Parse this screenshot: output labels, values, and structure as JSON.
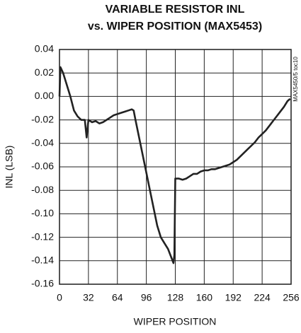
{
  "chart_data": {
    "type": "line",
    "title": [
      "VARIABLE RESISTOR INL",
      "vs. WIPER POSITION (MAX5453)"
    ],
    "xlabel": "WIPER POSITION",
    "ylabel": "INL (LSB)",
    "annotation": "MAX5450/5 toc10",
    "x": [
      0,
      1,
      4,
      8,
      12,
      16,
      20,
      24,
      28,
      30,
      32,
      36,
      40,
      44,
      48,
      52,
      56,
      60,
      64,
      68,
      72,
      76,
      80,
      82,
      84,
      88,
      92,
      96,
      100,
      104,
      108,
      112,
      116,
      120,
      124,
      126,
      127,
      128,
      132,
      136,
      140,
      144,
      148,
      152,
      156,
      160,
      164,
      168,
      172,
      176,
      180,
      184,
      188,
      192,
      196,
      200,
      204,
      208,
      212,
      216,
      220,
      224,
      228,
      232,
      236,
      240,
      244,
      248,
      252,
      255
    ],
    "values": [
      0.0,
      0.025,
      0.02,
      0.01,
      0.0,
      -0.012,
      -0.017,
      -0.02,
      -0.02,
      -0.035,
      -0.02,
      -0.022,
      -0.021,
      -0.023,
      -0.022,
      -0.02,
      -0.018,
      -0.016,
      -0.015,
      -0.014,
      -0.013,
      -0.012,
      -0.011,
      -0.012,
      -0.02,
      -0.035,
      -0.05,
      -0.065,
      -0.08,
      -0.095,
      -0.11,
      -0.12,
      -0.125,
      -0.13,
      -0.138,
      -0.142,
      -0.135,
      -0.07,
      -0.07,
      -0.071,
      -0.07,
      -0.068,
      -0.066,
      -0.066,
      -0.064,
      -0.063,
      -0.063,
      -0.062,
      -0.062,
      -0.061,
      -0.06,
      -0.059,
      -0.058,
      -0.056,
      -0.054,
      -0.051,
      -0.048,
      -0.045,
      -0.042,
      -0.039,
      -0.035,
      -0.032,
      -0.029,
      -0.025,
      -0.021,
      -0.017,
      -0.013,
      -0.009,
      -0.004,
      -0.002
    ],
    "color": "#222222",
    "xlim": [
      0,
      256
    ],
    "xticks": [
      0,
      32,
      64,
      96,
      128,
      160,
      192,
      224,
      256
    ],
    "ylim": [
      -0.16,
      0.04
    ],
    "yticks": [
      0.04,
      0.02,
      {
        "value": 0,
        "label": "0.00"
      },
      -0.02,
      -0.04,
      -0.06,
      -0.08,
      {
        "value": -0.1,
        "label": "-0.10"
      },
      -0.12,
      -0.14,
      -0.16
    ],
    "grid": true
  }
}
